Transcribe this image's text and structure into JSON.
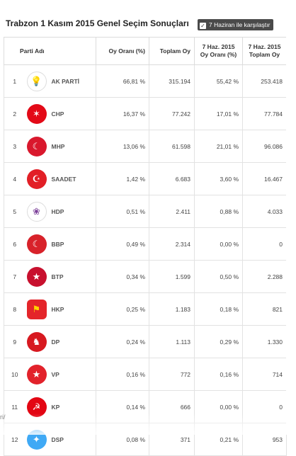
{
  "page": {
    "title": "Trabzon 1 Kasım 2015 Genel Seçim Sonuçları",
    "compare_label": "7 Haziran ile karşılaştır",
    "side_hint": "ri/"
  },
  "table": {
    "headers": {
      "party": "Parti Adı",
      "vote_share": "Oy Oranı (%)",
      "total_votes": "Toplam Oy",
      "june_share_l1": "7 Haz. 2015",
      "june_share_l2": "Oy Oranı (%)",
      "june_total_l1": "7 Haz. 2015",
      "june_total_l2": "Toplam Oy"
    },
    "rows": [
      {
        "rank": "1",
        "party": "AK PARTİ",
        "share": "66,81 %",
        "votes": "315.194",
        "jshare": "55,42 %",
        "jvotes": "253.418",
        "icon": "ak-parti-logo-icon",
        "color": "#f4c430"
      },
      {
        "rank": "2",
        "party": "CHP",
        "share": "16,37 %",
        "votes": "77.242",
        "jshare": "17,01 %",
        "jvotes": "77.784",
        "icon": "chp-logo-icon",
        "color": "#e30a17"
      },
      {
        "rank": "3",
        "party": "MHP",
        "share": "13,06 %",
        "votes": "61.598",
        "jshare": "21,01 %",
        "jvotes": "96.086",
        "icon": "mhp-logo-icon",
        "color": "#d9182d"
      },
      {
        "rank": "4",
        "party": "SAADET",
        "share": "1,42 %",
        "votes": "6.683",
        "jshare": "3,60 %",
        "jvotes": "16.467",
        "icon": "saadet-logo-icon",
        "color": "#e21f26"
      },
      {
        "rank": "5",
        "party": "HDP",
        "share": "0,51 %",
        "votes": "2.411",
        "jshare": "0,88 %",
        "jvotes": "4.033",
        "icon": "hdp-logo-icon",
        "color": "#7b3f98"
      },
      {
        "rank": "6",
        "party": "BBP",
        "share": "0,49 %",
        "votes": "2.314",
        "jshare": "0,00 %",
        "jvotes": "0",
        "icon": "bbp-logo-icon",
        "color": "#d8222a"
      },
      {
        "rank": "7",
        "party": "BTP",
        "share": "0,34 %",
        "votes": "1.599",
        "jshare": "0,50 %",
        "jvotes": "2.288",
        "icon": "btp-logo-icon",
        "color": "#c8102e"
      },
      {
        "rank": "8",
        "party": "HKP",
        "share": "0,25 %",
        "votes": "1.183",
        "jshare": "0,18 %",
        "jvotes": "821",
        "icon": "hkp-logo-icon",
        "color": "#e4252a"
      },
      {
        "rank": "9",
        "party": "DP",
        "share": "0,24 %",
        "votes": "1.113",
        "jshare": "0,29 %",
        "jvotes": "1.330",
        "icon": "dp-logo-icon",
        "color": "#d71920"
      },
      {
        "rank": "10",
        "party": "VP",
        "share": "0,16 %",
        "votes": "772",
        "jshare": "0,16 %",
        "jvotes": "714",
        "icon": "vp-logo-icon",
        "color": "#e2222b"
      },
      {
        "rank": "11",
        "party": "KP",
        "share": "0,14 %",
        "votes": "666",
        "jshare": "0,00 %",
        "jvotes": "0",
        "icon": "kp-logo-icon",
        "color": "#e30613"
      },
      {
        "rank": "12",
        "party": "DSP",
        "share": "0,08 %",
        "votes": "371",
        "jshare": "0,21 %",
        "jvotes": "953",
        "icon": "dsp-logo-icon",
        "color": "#3fa9f5"
      }
    ]
  }
}
